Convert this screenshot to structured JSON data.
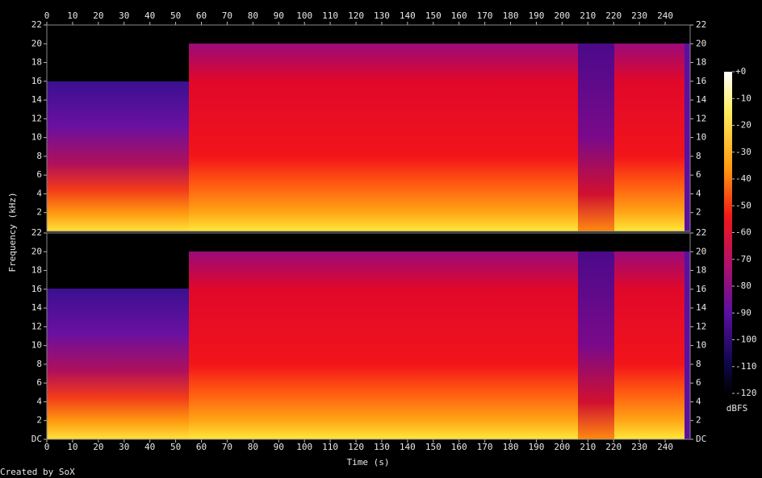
{
  "chart_data": {
    "type": "spectrogram",
    "x_label": "Time (s)",
    "y_label": "Frequency (kHz)",
    "xlim": [
      0,
      249.7
    ],
    "xticks": [
      0,
      10,
      20,
      30,
      40,
      50,
      60,
      70,
      80,
      90,
      100,
      110,
      120,
      130,
      140,
      150,
      160,
      170,
      180,
      190,
      200,
      210,
      220,
      230,
      240
    ],
    "panels": [
      {
        "ylim": [
          0,
          22
        ],
        "yticks": [
          2,
          4,
          6,
          8,
          10,
          12,
          14,
          16,
          18,
          20,
          22
        ]
      },
      {
        "ylim": [
          0,
          22
        ],
        "yticks": [
          {
            "value": 0,
            "label": "DC"
          },
          2,
          4,
          6,
          8,
          10,
          12,
          14,
          16,
          18,
          20,
          22
        ]
      }
    ],
    "colorbar": {
      "lim": [
        -120,
        0
      ],
      "label": "dBFS",
      "ticks": [
        {
          "value": 0,
          "label": "+0"
        },
        -10,
        -20,
        -30,
        -40,
        -50,
        -60,
        -70,
        -80,
        -90,
        -100,
        -110,
        -120
      ]
    },
    "credit": "Created by SoX"
  }
}
